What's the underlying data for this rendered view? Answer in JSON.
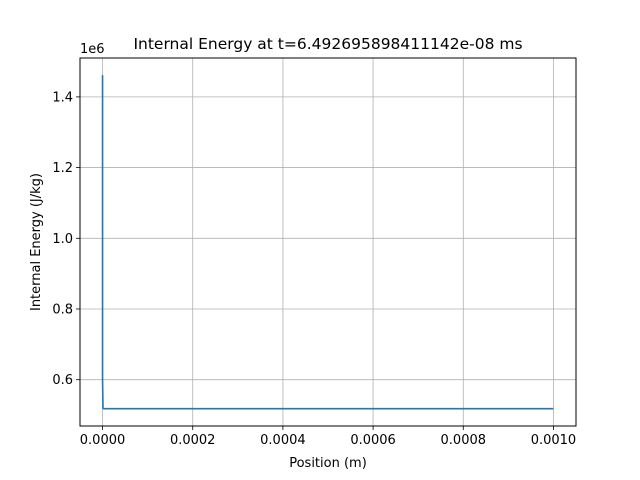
{
  "chart_data": {
    "type": "line",
    "title": "Internal Energy at t=6.492695898411142e-08 ms",
    "xlabel": "Position (m)",
    "ylabel": "Internal Energy (J/kg)",
    "y_offset_label": "1e6",
    "xlim": [
      -5e-05,
      0.00105
    ],
    "ylim": [
      469000,
      1510000
    ],
    "x_ticks": [
      0.0,
      0.0002,
      0.0004,
      0.0006,
      0.0008,
      0.001
    ],
    "x_tick_labels": [
      "0.0000",
      "0.0002",
      "0.0004",
      "0.0006",
      "0.0008",
      "0.0010"
    ],
    "y_ticks": [
      600000,
      800000,
      1000000,
      1200000,
      1400000
    ],
    "y_tick_labels": [
      "0.6",
      "0.8",
      "1.0",
      "1.2",
      "1.4"
    ],
    "grid": true,
    "series": [
      {
        "color": "#1f77b4",
        "x": [
          0.0,
          0.0,
          0.0,
          0.0,
          0.0,
          0.0,
          1e-06,
          2e-06,
          1e-05,
          0.0001,
          0.0002,
          0.0004,
          0.0006,
          0.0008,
          0.001
        ],
        "y": [
          1260000,
          1460000,
          1300000,
          1000000,
          800000,
          600000,
          520000,
          518000,
          518000,
          518000,
          518000,
          518000,
          518000,
          518000,
          518000
        ]
      }
    ]
  }
}
